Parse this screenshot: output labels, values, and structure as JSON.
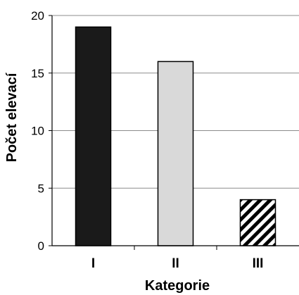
{
  "chart_data": {
    "type": "bar",
    "title": "",
    "xlabel": "Kategorie",
    "ylabel": "Počet elevací",
    "categories": [
      "I",
      "II",
      "III"
    ],
    "values": [
      19,
      16,
      4
    ],
    "ylim": [
      0,
      20
    ],
    "yticks": [
      "0",
      "5",
      "10",
      "15",
      "20"
    ],
    "grid": "horizontal",
    "legend": "none",
    "bar_styles": [
      {
        "fill": "#1a1a1a",
        "pattern": "solid"
      },
      {
        "fill": "#d9d9d9",
        "pattern": "solid"
      },
      {
        "fill": "#ffffff",
        "pattern": "diagonal-stripes"
      }
    ]
  }
}
